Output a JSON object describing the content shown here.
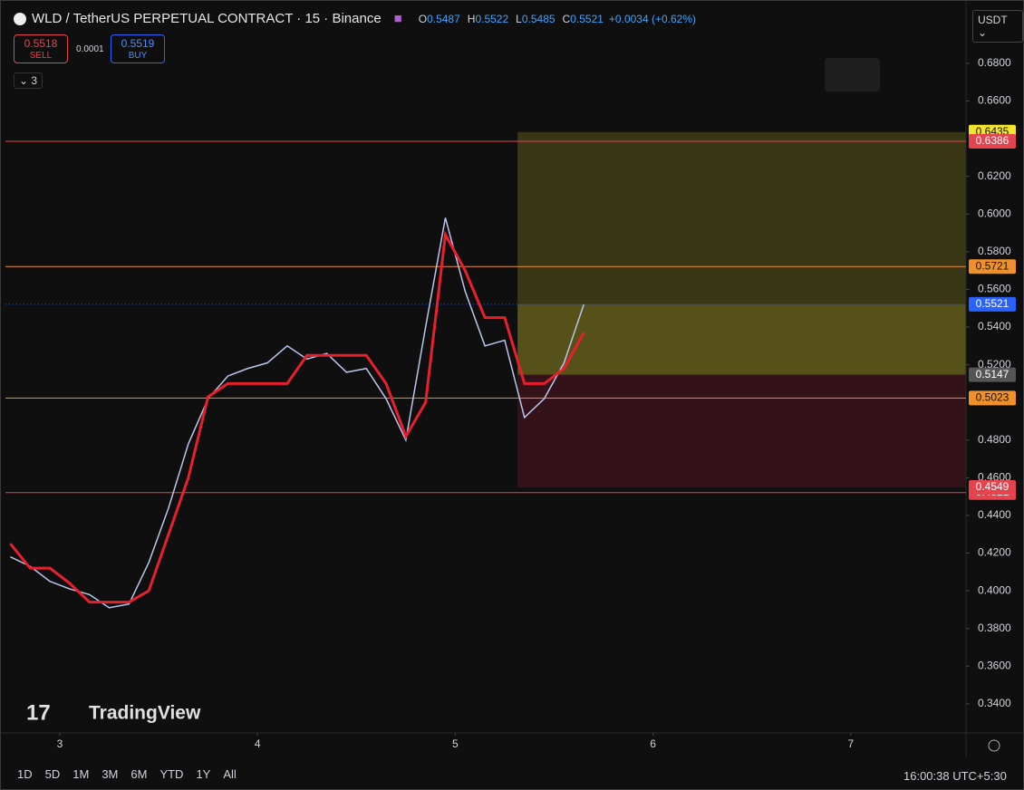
{
  "header": {
    "title": "WLD / TetherUS PERPETUAL CONTRACT · 15 · Binance",
    "ohlc": [
      {
        "key": "O",
        "value": "0.5487"
      },
      {
        "key": "H",
        "value": "0.5522"
      },
      {
        "key": "L",
        "value": "0.5485"
      },
      {
        "key": "C",
        "value": "0.5521"
      }
    ],
    "change": "+0.0034 (+0.62%)",
    "sell_price": "0.5518",
    "sell_label": "SELL",
    "spread": "0.0001",
    "buy_price": "0.5519",
    "buy_label": "BUY",
    "indicator_count": "3",
    "currency": "USDT"
  },
  "chart_data": {
    "type": "line",
    "watermark": "TradingView",
    "x": [
      2.75,
      2.85,
      2.95,
      3.05,
      3.15,
      3.25,
      3.35,
      3.45,
      3.55,
      3.65,
      3.75,
      3.85,
      3.95,
      4.05,
      4.15,
      4.25,
      4.35,
      4.45,
      4.55,
      4.65,
      4.75,
      4.85,
      4.95,
      5.05,
      5.15,
      5.25,
      5.35,
      5.45,
      5.55,
      5.65
    ],
    "series": [
      {
        "color": "#b9c6ee",
        "values": [
          0.418,
          0.413,
          0.405,
          0.401,
          0.398,
          0.391,
          0.393,
          0.415,
          0.444,
          0.478,
          0.502,
          0.514,
          0.518,
          0.521,
          0.53,
          0.523,
          0.526,
          0.516,
          0.518,
          0.502,
          0.48,
          0.54,
          0.598,
          0.559,
          0.53,
          0.533,
          0.492,
          0.502,
          0.521,
          0.552
        ]
      },
      {
        "color": "#e8202e",
        "values": [
          0.425,
          0.412,
          0.412,
          0.404,
          0.394,
          0.394,
          0.394,
          0.4,
          0.43,
          0.46,
          0.503,
          0.51,
          0.51,
          0.51,
          0.51,
          0.525,
          0.525,
          0.525,
          0.525,
          0.51,
          0.482,
          0.5,
          0.589,
          0.57,
          0.545,
          0.545,
          0.51,
          0.51,
          0.518,
          0.537
        ]
      }
    ],
    "xlim": [
      2.725,
      7.583
    ],
    "xticks": [
      3,
      4,
      5,
      6,
      7
    ],
    "ylim": [
      0.326,
      0.6963
    ],
    "yticks": [
      {
        "value": 0.68,
        "label": "0.6800"
      },
      {
        "value": 0.66,
        "label": "0.6600"
      },
      {
        "value": 0.62,
        "label": "0.6200"
      },
      {
        "value": 0.6,
        "label": "0.6000"
      },
      {
        "value": 0.58,
        "label": "0.5800"
      },
      {
        "value": 0.56,
        "label": "0.5600"
      },
      {
        "value": 0.54,
        "label": "0.5400"
      },
      {
        "value": 0.52,
        "label": "0.5200"
      },
      {
        "value": 0.48,
        "label": "0.4800"
      },
      {
        "value": 0.46,
        "label": "0.4600"
      },
      {
        "value": 0.44,
        "label": "0.4400"
      },
      {
        "value": 0.42,
        "label": "0.4200"
      },
      {
        "value": 0.4,
        "label": "0.4000"
      },
      {
        "value": 0.38,
        "label": "0.3800"
      },
      {
        "value": 0.36,
        "label": "0.3600"
      },
      {
        "value": 0.34,
        "label": "0.3400"
      }
    ],
    "hlines": [
      {
        "value": 0.6386,
        "color": "#e5444e"
      },
      {
        "value": 0.5721,
        "color": "#f0902a"
      },
      {
        "value": 0.5023,
        "color": "#f0902a"
      },
      {
        "value": 0.4521,
        "color": "#e5444e"
      }
    ],
    "last_price": {
      "value": 0.5521,
      "color": "#2962ff"
    },
    "position": {
      "x_start": 5.315,
      "target": 0.6435,
      "entry": 0.5147,
      "stop": 0.4549
    }
  },
  "footer": {
    "ranges": [
      "1D",
      "5D",
      "1M",
      "3M",
      "6M",
      "YTD",
      "1Y",
      "All"
    ],
    "clock": "16:00:38 UTC+5:30"
  }
}
